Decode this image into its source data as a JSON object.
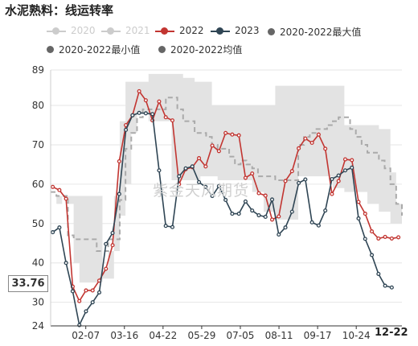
{
  "title": "水泥熟料：线运转率",
  "watermark": "紫金天风期货",
  "last_value_label": "33.76",
  "end_x_label": "12-22",
  "legend": [
    {
      "label": "2020",
      "color": "#cccccc",
      "muted": true,
      "style": "line-dot"
    },
    {
      "label": "2021",
      "color": "#cccccc",
      "muted": true,
      "style": "line-dot"
    },
    {
      "label": "2022",
      "color": "#c23531",
      "muted": false,
      "style": "line-dot"
    },
    {
      "label": "2023",
      "color": "#2f4554",
      "muted": false,
      "style": "line-dot"
    },
    {
      "label": "2020-2022最大值",
      "color": "#666666",
      "muted": false,
      "style": "dot"
    },
    {
      "label": "2020-2022最小值",
      "color": "#666666",
      "muted": false,
      "style": "dot"
    },
    {
      "label": "2020-2022均值",
      "color": "#666666",
      "muted": false,
      "style": "dot"
    }
  ],
  "chart_data": {
    "type": "line",
    "title": "水泥熟料：线运转率",
    "ylim": [
      24,
      89
    ],
    "yticks": [
      24,
      30,
      40,
      50,
      60,
      70,
      80,
      89
    ],
    "xlim": [
      0,
      50
    ],
    "xticks": [
      {
        "label": "02-07",
        "x": 5
      },
      {
        "label": "03-16",
        "x": 10.5
      },
      {
        "label": "04-22",
        "x": 16
      },
      {
        "label": "05-29",
        "x": 21.5
      },
      {
        "label": "07-05",
        "x": 27
      },
      {
        "label": "08-11",
        "x": 32.5
      },
      {
        "label": "09-17",
        "x": 38
      },
      {
        "label": "10-24",
        "x": 43.5
      }
    ],
    "band": {
      "name": "2020-2022最大值/最小值",
      "color": "#e3e3e3",
      "max": [
        53,
        57,
        57,
        57,
        57,
        57,
        57,
        57,
        57,
        38,
        43,
        57,
        76,
        86,
        86,
        86,
        86,
        88,
        88,
        88,
        88,
        88,
        88,
        87,
        87,
        86,
        86,
        86,
        80,
        80,
        80,
        80,
        80,
        80,
        80,
        80,
        80,
        80,
        80,
        85,
        85,
        85,
        85,
        85,
        85,
        85,
        85,
        85,
        85,
        85,
        85,
        75,
        75,
        75,
        75,
        75,
        75,
        74,
        74,
        63,
        55,
        55
      ],
      "min": [
        53,
        55,
        57,
        55,
        40,
        35,
        35,
        35,
        35,
        36,
        36,
        43,
        52,
        60,
        73,
        78,
        78,
        76,
        76,
        76,
        76,
        61,
        61,
        61,
        61,
        61,
        62,
        62,
        62,
        61,
        61,
        61,
        61,
        61,
        61,
        58,
        58,
        53,
        53,
        51,
        51,
        51,
        51,
        62,
        62,
        62,
        62,
        62,
        62,
        59,
        59,
        58,
        58,
        58,
        58,
        55,
        55,
        53,
        53,
        50,
        50,
        50
      ],
      "mean": [
        58,
        57,
        57,
        47,
        46,
        46,
        46,
        46,
        43,
        43,
        46,
        46,
        56,
        69,
        73,
        77,
        79,
        79,
        79,
        79,
        82,
        82,
        79,
        76,
        76,
        73,
        73,
        72,
        70,
        69,
        69,
        67,
        65,
        66,
        65,
        64,
        62,
        62,
        62,
        61,
        61,
        61,
        61,
        70,
        72,
        73,
        74,
        74,
        75,
        76,
        77,
        77,
        74,
        72,
        70,
        68,
        68,
        66,
        64,
        60,
        55,
        52
      ]
    },
    "series": [
      {
        "name": "2022",
        "color": "#c23531",
        "values": [
          59.3,
          58.5,
          56.3,
          34.0,
          30.3,
          33.0,
          33.0,
          35.5,
          38.5,
          44.5,
          65.8,
          75.0,
          77.5,
          83.6,
          81.3,
          76.2,
          81.0,
          77.0,
          76.2,
          60.0,
          63.8,
          64.3,
          66.6,
          64.5,
          69.8,
          68.4,
          73.0,
          72.6,
          72.4,
          61.6,
          62.7,
          57.7,
          57.1,
          51.0,
          51.8,
          60.8,
          63.3,
          69.1,
          71.6,
          70.5,
          72.6,
          69.0,
          57.5,
          60.8,
          66.3,
          66.1,
          55.5,
          52.5,
          48.0,
          46.2,
          46.6,
          46.2,
          46.5
        ]
      },
      {
        "name": "2023",
        "color": "#2f4554",
        "values": [
          47.8,
          49.0,
          40.0,
          32.8,
          24.2,
          27.7,
          30.0,
          32.5,
          44.8,
          47.6,
          57.5,
          73.8,
          77.5,
          78.1,
          78.0,
          77.8,
          63.5,
          49.4,
          49.1,
          62.0,
          64.0,
          64.5,
          60.5,
          59.3,
          57.0,
          59.5,
          56.0,
          52.5,
          52.5,
          55.6,
          53.3,
          52.1,
          51.7,
          56.1,
          47.2,
          49.0,
          53.0,
          60.3,
          61.2,
          50.3,
          49.5,
          53.3,
          61.3,
          62.2,
          63.5,
          64.2,
          51.3,
          46.1,
          42.0,
          37.2,
          34.2,
          33.76
        ]
      }
    ]
  }
}
